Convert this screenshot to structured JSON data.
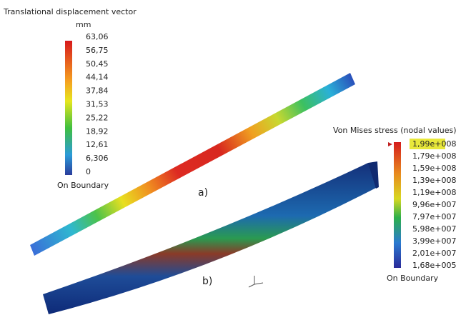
{
  "legend_a": {
    "title": "Translational displacement vector",
    "unit": "mm",
    "labels": [
      "63,06",
      "56,75",
      "50,45",
      "44,14",
      "37,84",
      "31,53",
      "25,22",
      "18,92",
      "12,61",
      "6,306",
      "0"
    ],
    "footer": "On Boundary"
  },
  "legend_b": {
    "title": "Von Mises stress (nodal values)",
    "labels": [
      "1,99e+008",
      "1,79e+008",
      "1,59e+008",
      "1,39e+008",
      "1,19e+008",
      "9,96e+007",
      "7,97e+007",
      "5,98e+007",
      "3,99e+007",
      "2,01e+007",
      "1,68e+005"
    ],
    "footer": "On Boundary"
  },
  "panel_labels": [
    "a)",
    "b)"
  ]
}
